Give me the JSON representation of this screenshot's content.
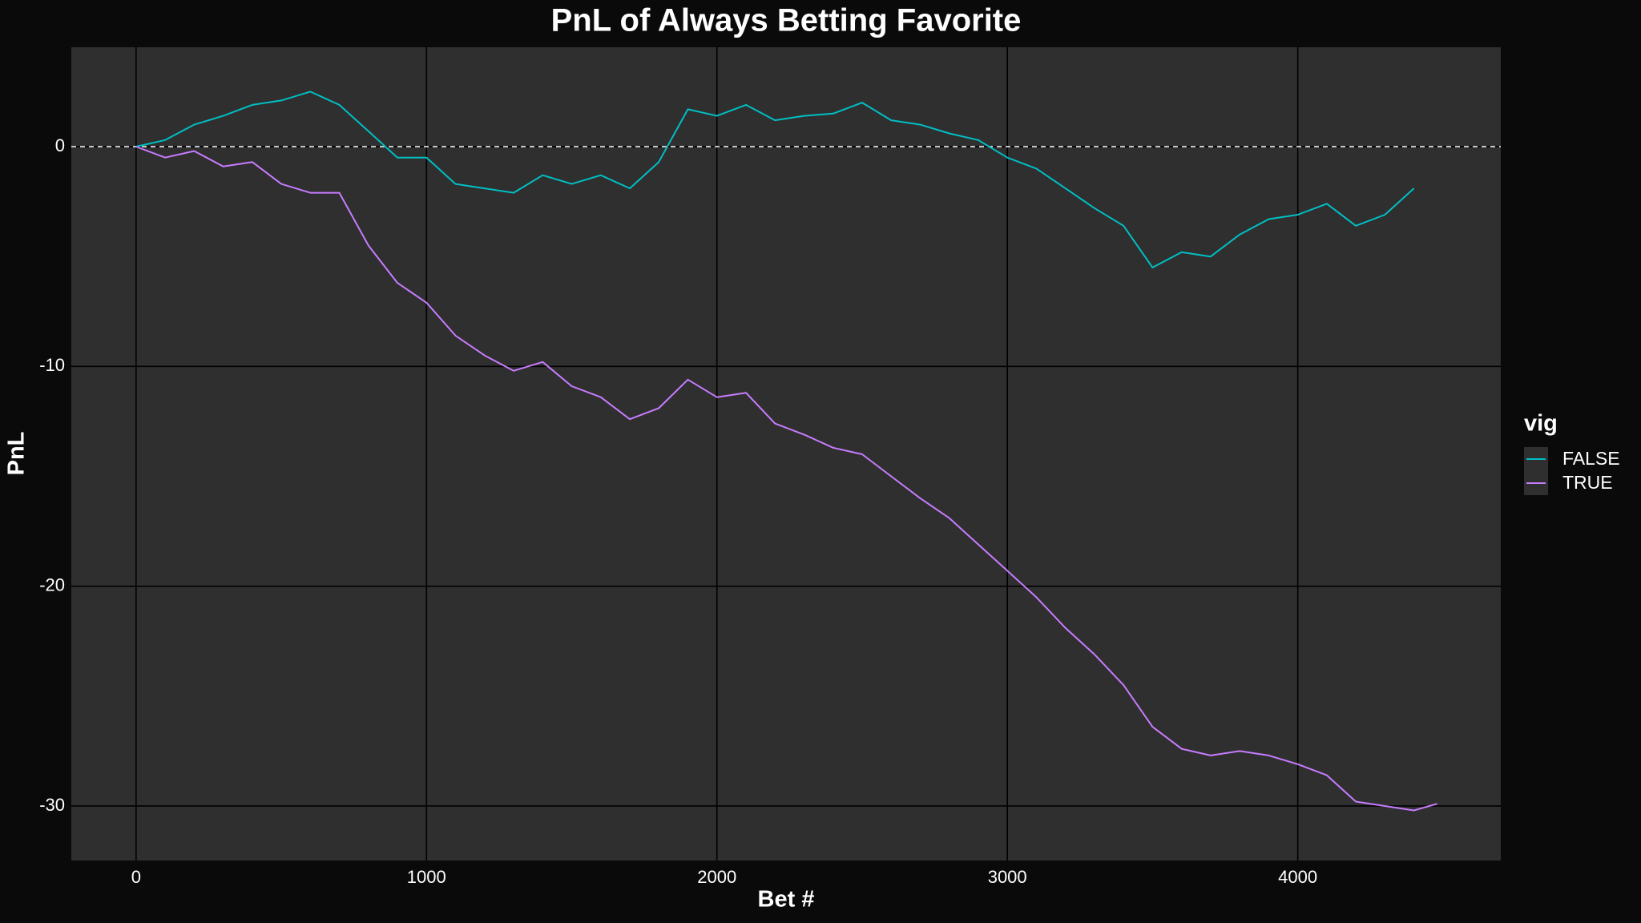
{
  "chart_data": {
    "type": "line",
    "title": "PnL of Always Betting Favorite",
    "x_label": "Bet #",
    "y_label": "PnL",
    "x": [
      0,
      100,
      200,
      300,
      400,
      500,
      600,
      700,
      800,
      900,
      1000,
      1100,
      1200,
      1300,
      1400,
      1500,
      1600,
      1700,
      1800,
      1900,
      2000,
      2100,
      2200,
      2300,
      2400,
      2500,
      2600,
      2700,
      2800,
      2900,
      3000,
      3100,
      3200,
      3300,
      3400,
      3500,
      3600,
      3700,
      3800,
      3900,
      4000,
      4100,
      4200,
      4300,
      4400,
      4480
    ],
    "series": [
      {
        "name": "FALSE",
        "color": "#00BFC4",
        "values": [
          0,
          0.3,
          1.0,
          1.4,
          1.9,
          2.1,
          2.5,
          1.9,
          0.7,
          -0.5,
          -0.5,
          -1.7,
          -1.9,
          -2.1,
          -1.3,
          -1.7,
          -1.3,
          -1.9,
          -0.7,
          1.7,
          1.4,
          1.9,
          1.2,
          1.4,
          1.5,
          2.0,
          1.2,
          1.0,
          0.6,
          0.3,
          -0.5,
          -1.0,
          -1.9,
          -2.8,
          -3.6,
          -5.5,
          -4.8,
          -5.0,
          -4.0,
          -3.3,
          -3.1,
          -2.6,
          -3.6,
          -3.1,
          -1.9,
          null
        ]
      },
      {
        "name": "TRUE",
        "color": "#C77CFF",
        "values": [
          0,
          -0.5,
          -0.2,
          -0.9,
          -0.7,
          -1.7,
          -2.1,
          -2.1,
          -4.5,
          -6.2,
          -7.1,
          -8.6,
          -9.5,
          -10.2,
          -9.8,
          -10.9,
          -11.4,
          -12.4,
          -11.9,
          -10.6,
          -11.4,
          -11.2,
          -12.6,
          -13.1,
          -13.7,
          -14.0,
          -15.0,
          -16.0,
          -16.9,
          -18.1,
          -19.3,
          -20.5,
          -21.9,
          -23.1,
          -24.5,
          -26.4,
          -27.4,
          -27.7,
          -27.5,
          -27.7,
          -28.1,
          -28.6,
          -29.8,
          -30.0,
          -30.2,
          -29.9
        ]
      }
    ],
    "legend_title": "vig",
    "legend_position": "right",
    "hline": 0,
    "xlim": [
      -223,
      4699
    ],
    "xticks": [
      0,
      1000,
      2000,
      3000,
      4000
    ],
    "ylim": [
      -32.48,
      4.52
    ],
    "yticks": [
      -30,
      -20,
      -10,
      0
    ],
    "grid": true
  }
}
